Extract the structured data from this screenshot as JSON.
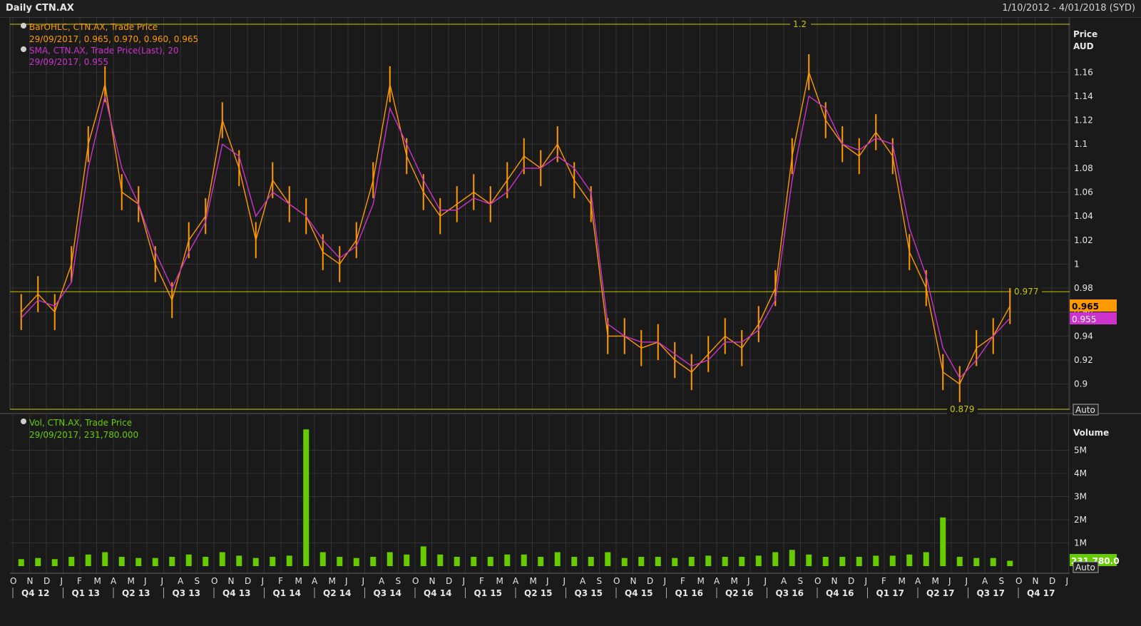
{
  "header": {
    "title": "Daily CTN.AX",
    "range": "1/10/2012 - 4/01/2018 (SYD)"
  },
  "price_panel": {
    "legend_price_label": "BarOHLC, CTN.AX, Trade Price",
    "legend_price_value": "29/09/2017, 0.965, 0.970, 0.960, 0.965",
    "legend_sma_label": "SMA, CTN.AX, Trade Price(Last),  20",
    "legend_sma_value": "29/09/2017, 0.955",
    "axis_title_1": "Price",
    "axis_title_2": "AUD",
    "last_price_tag": "0.965",
    "last_sma_tag": "0.955",
    "auto_label": "Auto",
    "hline_labels": [
      "1.2",
      "0.977",
      "0.879"
    ]
  },
  "volume_panel": {
    "legend_label": "Vol, CTN.AX, Trade Price",
    "legend_value": "29/09/2017, 231,780.000",
    "axis_title": "Volume",
    "last_volume_tag": "231,780.0",
    "auto_label": "Auto"
  },
  "colors": {
    "price": "#ff9900",
    "sma": "#cc33cc",
    "volume": "#66cc00",
    "hline": "#c8c800",
    "grid": "#333333",
    "bg": "#1a1a1a"
  },
  "chart_data": [
    {
      "type": "line",
      "title": "Daily CTN.AX",
      "series": [
        {
          "name": "BarOHLC, CTN.AX, Trade Price",
          "x": [
            "2012-10",
            "2012-11",
            "2012-12",
            "2013-01",
            "2013-02",
            "2013-03",
            "2013-04",
            "2013-05",
            "2013-06",
            "2013-07",
            "2013-08",
            "2013-09",
            "2013-10",
            "2013-11",
            "2013-12",
            "2014-01",
            "2014-02",
            "2014-03",
            "2014-04",
            "2014-05",
            "2014-06",
            "2014-07",
            "2014-08",
            "2014-09",
            "2014-10",
            "2014-11",
            "2014-12",
            "2015-01",
            "2015-02",
            "2015-03",
            "2015-04",
            "2015-05",
            "2015-06",
            "2015-07",
            "2015-08",
            "2015-09",
            "2015-10",
            "2015-11",
            "2015-12",
            "2016-01",
            "2016-02",
            "2016-03",
            "2016-04",
            "2016-05",
            "2016-06",
            "2016-07",
            "2016-08",
            "2016-09",
            "2016-10",
            "2016-11",
            "2016-12",
            "2017-01",
            "2017-02",
            "2017-03",
            "2017-04",
            "2017-05",
            "2017-06",
            "2017-07",
            "2017-08",
            "2017-09"
          ],
          "values": [
            0.96,
            0.975,
            0.96,
            1.0,
            1.1,
            1.15,
            1.06,
            1.05,
            1.0,
            0.97,
            1.02,
            1.04,
            1.12,
            1.08,
            1.02,
            1.07,
            1.05,
            1.04,
            1.01,
            1.0,
            1.02,
            1.07,
            1.15,
            1.09,
            1.06,
            1.04,
            1.05,
            1.06,
            1.05,
            1.07,
            1.09,
            1.08,
            1.1,
            1.07,
            1.05,
            0.94,
            0.94,
            0.93,
            0.935,
            0.92,
            0.91,
            0.925,
            0.94,
            0.93,
            0.95,
            0.98,
            1.09,
            1.16,
            1.12,
            1.1,
            1.09,
            1.11,
            1.09,
            1.01,
            0.98,
            0.91,
            0.9,
            0.93,
            0.94,
            0.965
          ]
        },
        {
          "name": "SMA, CTN.AX, Trade Price(Last),  20",
          "x": [
            "2012-10",
            "2012-11",
            "2012-12",
            "2013-01",
            "2013-02",
            "2013-03",
            "2013-04",
            "2013-05",
            "2013-06",
            "2013-07",
            "2013-08",
            "2013-09",
            "2013-10",
            "2013-11",
            "2013-12",
            "2014-01",
            "2014-02",
            "2014-03",
            "2014-04",
            "2014-05",
            "2014-06",
            "2014-07",
            "2014-08",
            "2014-09",
            "2014-10",
            "2014-11",
            "2014-12",
            "2015-01",
            "2015-02",
            "2015-03",
            "2015-04",
            "2015-05",
            "2015-06",
            "2015-07",
            "2015-08",
            "2015-09",
            "2015-10",
            "2015-11",
            "2015-12",
            "2016-01",
            "2016-02",
            "2016-03",
            "2016-04",
            "2016-05",
            "2016-06",
            "2016-07",
            "2016-08",
            "2016-09",
            "2016-10",
            "2016-11",
            "2016-12",
            "2017-01",
            "2017-02",
            "2017-03",
            "2017-04",
            "2017-05",
            "2017-06",
            "2017-07",
            "2017-08",
            "2017-09"
          ],
          "values": [
            0.955,
            0.97,
            0.965,
            0.985,
            1.08,
            1.14,
            1.08,
            1.05,
            1.01,
            0.98,
            1.01,
            1.035,
            1.1,
            1.09,
            1.04,
            1.06,
            1.05,
            1.04,
            1.02,
            1.005,
            1.015,
            1.05,
            1.13,
            1.1,
            1.07,
            1.045,
            1.045,
            1.055,
            1.05,
            1.06,
            1.08,
            1.08,
            1.09,
            1.08,
            1.06,
            0.95,
            0.94,
            0.935,
            0.935,
            0.925,
            0.915,
            0.92,
            0.935,
            0.935,
            0.945,
            0.97,
            1.07,
            1.14,
            1.13,
            1.1,
            1.095,
            1.105,
            1.1,
            1.03,
            0.99,
            0.93,
            0.905,
            0.92,
            0.94,
            0.955
          ]
        }
      ],
      "ylabel": "Price AUD",
      "ylim": [
        0.879,
        1.2
      ],
      "y_ticks": [
        "0.9",
        "0.92",
        "0.94",
        "0.96",
        "0.98",
        "1",
        "1.02",
        "1.04",
        "1.06",
        "1.08",
        "1.1",
        "1.12",
        "1.14",
        "1.16"
      ],
      "hlines": [
        1.2,
        0.977,
        0.879
      ],
      "grid": true,
      "legend": "top-left"
    },
    {
      "type": "bar",
      "title": "Vol, CTN.AX, Trade Price",
      "series": [
        {
          "name": "Vol, CTN.AX, Trade Price",
          "x": [
            "2012-10",
            "2012-11",
            "2012-12",
            "2013-01",
            "2013-02",
            "2013-03",
            "2013-04",
            "2013-05",
            "2013-06",
            "2013-07",
            "2013-08",
            "2013-09",
            "2013-10",
            "2013-11",
            "2013-12",
            "2014-01",
            "2014-02",
            "2014-03",
            "2014-04",
            "2014-05",
            "2014-06",
            "2014-07",
            "2014-08",
            "2014-09",
            "2014-10",
            "2014-11",
            "2014-12",
            "2015-01",
            "2015-02",
            "2015-03",
            "2015-04",
            "2015-05",
            "2015-06",
            "2015-07",
            "2015-08",
            "2015-09",
            "2015-10",
            "2015-11",
            "2015-12",
            "2016-01",
            "2016-02",
            "2016-03",
            "2016-04",
            "2016-05",
            "2016-06",
            "2016-07",
            "2016-08",
            "2016-09",
            "2016-10",
            "2016-11",
            "2016-12",
            "2017-01",
            "2017-02",
            "2017-03",
            "2017-04",
            "2017-05",
            "2017-06",
            "2017-07",
            "2017-08",
            "2017-09"
          ],
          "values": [
            300000,
            350000,
            300000,
            400000,
            500000,
            600000,
            400000,
            350000,
            350000,
            400000,
            500000,
            400000,
            600000,
            450000,
            350000,
            400000,
            450000,
            5900000,
            600000,
            400000,
            350000,
            400000,
            600000,
            500000,
            850000,
            500000,
            400000,
            400000,
            400000,
            500000,
            500000,
            400000,
            600000,
            400000,
            400000,
            600000,
            350000,
            400000,
            400000,
            350000,
            400000,
            450000,
            400000,
            400000,
            450000,
            600000,
            700000,
            500000,
            400000,
            400000,
            400000,
            450000,
            450000,
            500000,
            600000,
            2100000,
            400000,
            350000,
            350000,
            231780
          ]
        }
      ],
      "ylabel": "Volume",
      "ylim": [
        0,
        6000000
      ],
      "y_ticks": [
        "1M",
        "2M",
        "3M",
        "4M",
        "5M"
      ],
      "grid": true,
      "legend": "top-left"
    }
  ],
  "x_axis": {
    "months": [
      "O",
      "N",
      "D",
      "J",
      "F",
      "M",
      "A",
      "M",
      "J",
      "J",
      "A",
      "S",
      "O",
      "N",
      "D",
      "J",
      "F",
      "M",
      "A",
      "M",
      "J",
      "J",
      "A",
      "S",
      "O",
      "N",
      "D",
      "J",
      "F",
      "M",
      "A",
      "M",
      "J",
      "J",
      "A",
      "S",
      "O",
      "N",
      "D",
      "J",
      "F",
      "M",
      "A",
      "M",
      "J",
      "J",
      "A",
      "S",
      "O",
      "N",
      "D",
      "J",
      "F",
      "M",
      "A",
      "M",
      "J",
      "J",
      "A",
      "S",
      "O",
      "N",
      "D",
      "J"
    ],
    "quarters": [
      "Q4 12",
      "Q1 13",
      "Q2 13",
      "Q3 13",
      "Q4 13",
      "Q1 14",
      "Q2 14",
      "Q3 14",
      "Q4 14",
      "Q1 15",
      "Q2 15",
      "Q3 15",
      "Q4 15",
      "Q1 16",
      "Q2 16",
      "Q3 16",
      "Q4 16",
      "Q1 17",
      "Q2 17",
      "Q3 17",
      "Q4 17"
    ]
  }
}
